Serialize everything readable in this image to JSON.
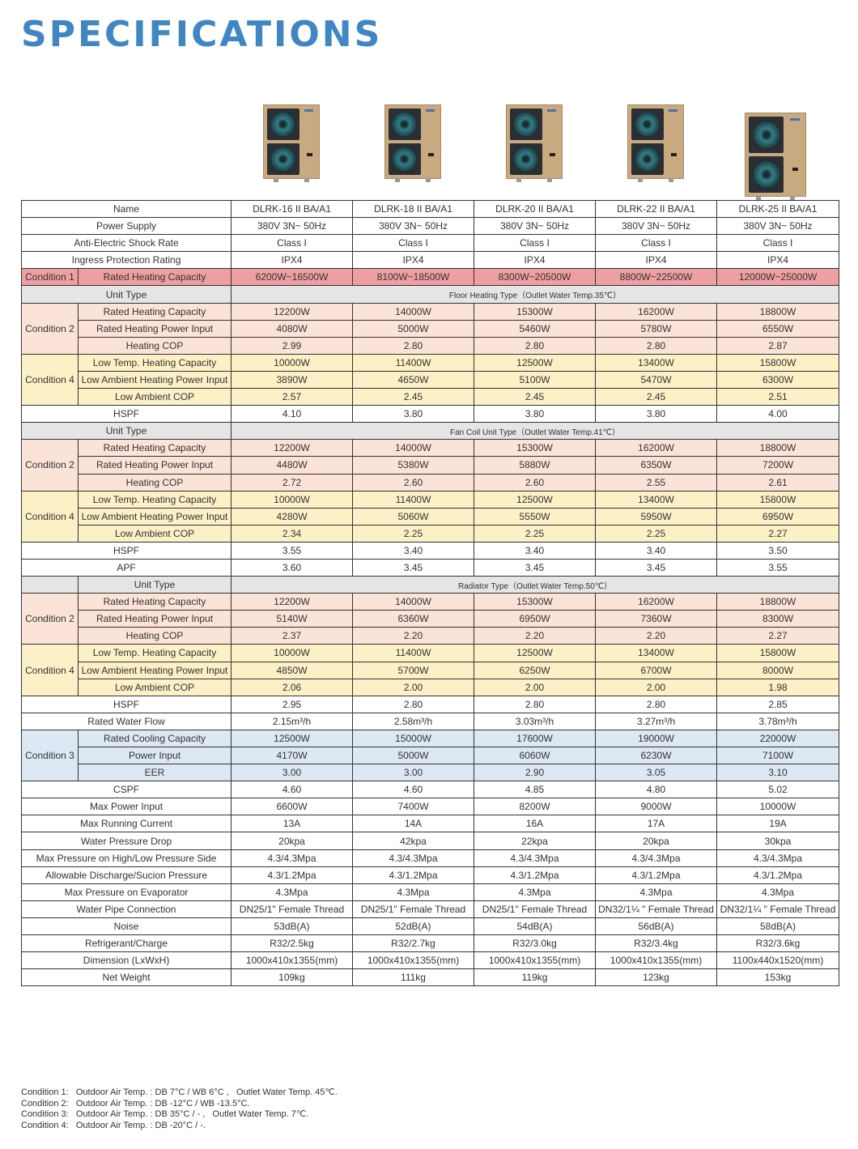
{
  "title": "SPECIFICATIONS",
  "colors": {
    "title": "#3f86c2",
    "condition_1": "#ee9fa2",
    "condition_2": "#fbe3d7",
    "condition_3": "#dce8f4",
    "condition_4": "#fcf0c6",
    "unit_type": "#e5e5e5"
  },
  "product_images": [
    "heat-pump-unit-image",
    "heat-pump-unit-image",
    "heat-pump-unit-image",
    "heat-pump-unit-image",
    "heat-pump-unit-image"
  ],
  "rows": [
    {
      "label": "Name",
      "values": [
        "DLRK-16 II BA/A1",
        "DLRK-18 II BA/A1",
        "DLRK-20 II BA/A1",
        "DLRK-22 II BA/A1",
        "DLRK-25 II BA/A1"
      ]
    },
    {
      "label": "Power Supply",
      "values": [
        "380V 3N~ 50Hz",
        "380V 3N~ 50Hz",
        "380V 3N~ 50Hz",
        "380V 3N~ 50Hz",
        "380V 3N~ 50Hz"
      ]
    },
    {
      "label": "Anti-Electric Shock Rate",
      "values": [
        "Class I",
        "Class I",
        "Class I",
        "Class I",
        "Class I"
      ]
    },
    {
      "label": "Ingress Protection Rating",
      "values": [
        "IPX4",
        "IPX4",
        "IPX4",
        "IPX4",
        "IPX4"
      ]
    },
    {
      "group": "Condition 1",
      "tone": "cond1",
      "items": [
        {
          "label": "Rated Heating Capacity",
          "values": [
            "6200W~16500W",
            "8100W~18500W",
            "8300W~20500W",
            "8800W~22500W",
            "12000W~25000W"
          ]
        }
      ]
    },
    {
      "unit_type": "Unit Type",
      "text": "Floor Heating Type（Outlet Water Temp.35℃）"
    },
    {
      "group": "Condition 2",
      "tone": "cond2",
      "items": [
        {
          "label": "Rated Heating Capacity",
          "values": [
            "12200W",
            "14000W",
            "15300W",
            "16200W",
            "18800W"
          ]
        },
        {
          "label": "Rated Heating Power Input",
          "values": [
            "4080W",
            "5000W",
            "5460W",
            "5780W",
            "6550W"
          ]
        },
        {
          "label": "Heating COP",
          "values": [
            "2.99",
            "2.80",
            "2.80",
            "2.80",
            "2.87"
          ]
        }
      ]
    },
    {
      "group": "Condition 4",
      "tone": "cond4",
      "items": [
        {
          "label": "Low Temp. Heating Capacity",
          "values": [
            "10000W",
            "11400W",
            "12500W",
            "13400W",
            "15800W"
          ]
        },
        {
          "label": "Low Ambient Heating Power Input",
          "values": [
            "3890W",
            "4650W",
            "5100W",
            "5470W",
            "6300W"
          ]
        },
        {
          "label": "Low Ambient COP",
          "values": [
            "2.57",
            "2.45",
            "2.45",
            "2.45",
            "2.51"
          ]
        }
      ]
    },
    {
      "label": "HSPF",
      "values": [
        "4.10",
        "3.80",
        "3.80",
        "3.80",
        "4.00"
      ]
    },
    {
      "unit_type": "Unit Type",
      "text": "Fan Coil Unit Type（Outlet Water Temp.41℃）"
    },
    {
      "group": "Condition 2",
      "tone": "cond2",
      "items": [
        {
          "label": "Rated Heating Capacity",
          "values": [
            "12200W",
            "14000W",
            "15300W",
            "16200W",
            "18800W"
          ]
        },
        {
          "label": "Rated Heating Power Input",
          "values": [
            "4480W",
            "5380W",
            "5880W",
            "6350W",
            "7200W"
          ]
        },
        {
          "label": "Heating COP",
          "values": [
            "2.72",
            "2.60",
            "2.60",
            "2.55",
            "2.61"
          ]
        }
      ]
    },
    {
      "group": "Condition 4",
      "tone": "cond4",
      "items": [
        {
          "label": "Low Temp. Heating Capacity",
          "values": [
            "10000W",
            "11400W",
            "12500W",
            "13400W",
            "15800W"
          ]
        },
        {
          "label": "Low Ambient Heating Power Input",
          "values": [
            "4280W",
            "5060W",
            "5550W",
            "5950W",
            "6950W"
          ]
        },
        {
          "label": "Low Ambient COP",
          "values": [
            "2.34",
            "2.25",
            "2.25",
            "2.25",
            "2.27"
          ]
        }
      ]
    },
    {
      "label": "HSPF",
      "values": [
        "3.55",
        "3.40",
        "3.40",
        "3.40",
        "3.50"
      ]
    },
    {
      "label": "APF",
      "values": [
        "3.60",
        "3.45",
        "3.45",
        "3.45",
        "3.55"
      ]
    },
    {
      "unit_type": "Unit Type",
      "text": "Radiator Type（Outlet Water Temp.50℃）",
      "split": true
    },
    {
      "group": "Condition 2",
      "tone": "cond2",
      "items": [
        {
          "label": "Rated Heating Capacity",
          "values": [
            "12200W",
            "14000W",
            "15300W",
            "16200W",
            "18800W"
          ]
        },
        {
          "label": "Rated Heating Power Input",
          "values": [
            "5140W",
            "6360W",
            "6950W",
            "7360W",
            "8300W"
          ]
        },
        {
          "label": "Heating COP",
          "values": [
            "2.37",
            "2.20",
            "2.20",
            "2.20",
            "2.27"
          ]
        }
      ]
    },
    {
      "group": "Condition 4",
      "tone": "cond4",
      "items": [
        {
          "label": "Low Temp. Heating Capacity",
          "values": [
            "10000W",
            "11400W",
            "12500W",
            "13400W",
            "15800W"
          ]
        },
        {
          "label": "Low Ambient Heating Power Input",
          "values": [
            "4850W",
            "5700W",
            "6250W",
            "6700W",
            "8000W"
          ]
        },
        {
          "label": "Low Ambient COP",
          "values": [
            "2.06",
            "2.00",
            "2.00",
            "2.00",
            "1.98"
          ]
        }
      ]
    },
    {
      "label": "HSPF",
      "values": [
        "2.95",
        "2.80",
        "2.80",
        "2.80",
        "2.85"
      ]
    },
    {
      "label": "Rated Water Flow",
      "values": [
        "2.15m³/h",
        "2.58m³/h",
        "3.03m³/h",
        "3.27m³/h",
        "3.78m³/h"
      ]
    },
    {
      "group": "Condition 3",
      "tone": "cond3",
      "items": [
        {
          "label": "Rated Cooling Capacity",
          "values": [
            "12500W",
            "15000W",
            "17600W",
            "19000W",
            "22000W"
          ]
        },
        {
          "label": "Power Input",
          "values": [
            "4170W",
            "5000W",
            "6060W",
            "6230W",
            "7100W"
          ]
        },
        {
          "label": "EER",
          "values": [
            "3.00",
            "3.00",
            "2.90",
            "3.05",
            "3.10"
          ]
        }
      ]
    },
    {
      "label": "CSPF",
      "values": [
        "4.60",
        "4.60",
        "4.85",
        "4.80",
        "5.02"
      ]
    },
    {
      "label": "Max Power Input",
      "values": [
        "6600W",
        "7400W",
        "8200W",
        "9000W",
        "10000W"
      ]
    },
    {
      "label": "Max Running Current",
      "values": [
        "13A",
        "14A",
        "16A",
        "17A",
        "19A"
      ]
    },
    {
      "label": "Water Pressure Drop",
      "values": [
        "20kpa",
        "42kpa",
        "22kpa",
        "20kpa",
        "30kpa"
      ]
    },
    {
      "label": "Max Pressure on High/Low Pressure Side",
      "values": [
        "4.3/4.3Mpa",
        "4.3/4.3Mpa",
        "4.3/4.3Mpa",
        "4.3/4.3Mpa",
        "4.3/4.3Mpa"
      ]
    },
    {
      "label": "Allowable Discharge/Sucion Pressure",
      "values": [
        "4.3/1.2Mpa",
        "4.3/1.2Mpa",
        "4.3/1.2Mpa",
        "4.3/1.2Mpa",
        "4.3/1.2Mpa"
      ]
    },
    {
      "label": "Max Pressure on Evaporator",
      "values": [
        "4.3Mpa",
        "4.3Mpa",
        "4.3Mpa",
        "4.3Mpa",
        "4.3Mpa"
      ]
    },
    {
      "label": "Water Pipe Connection",
      "values": [
        "DN25/1\" Female Thread",
        "DN25/1\" Female Thread",
        "DN25/1\" Female Thread",
        "DN32/1¼ \" Female Thread",
        "DN32/1¼ \" Female Thread"
      ]
    },
    {
      "label": "Noise",
      "values": [
        "53dB(A)",
        "52dB(A)",
        "54dB(A)",
        "56dB(A)",
        "58dB(A)"
      ]
    },
    {
      "label": "Refrigerant/Charge",
      "values": [
        "R32/2.5kg",
        "R32/2.7kg",
        "R32/3.0kg",
        "R32/3.4kg",
        "R32/3.6kg"
      ]
    },
    {
      "label": "Dimension (LxWxH)",
      "values": [
        "1000x410x1355(mm)",
        "1000x410x1355(mm)",
        "1000x410x1355(mm)",
        "1000x410x1355(mm)",
        "1100x440x1520(mm)"
      ]
    },
    {
      "label": "Net Weight",
      "values": [
        "109kg",
        "111kg",
        "119kg",
        "123kg",
        "153kg"
      ]
    }
  ],
  "notes": [
    "Condition 1:   Outdoor Air Temp. : DB 7°C / WB 6°C ,   Outlet Water Temp. 45℃.",
    "Condition 2:   Outdoor Air Temp. : DB -12°C / WB -13.5°C.",
    "Condition 3:   Outdoor Air Temp. : DB 35°C / - ,   Outlet Water Temp. 7℃.",
    "Condition 4:   Outdoor Air Temp. : DB -20°C / -."
  ]
}
